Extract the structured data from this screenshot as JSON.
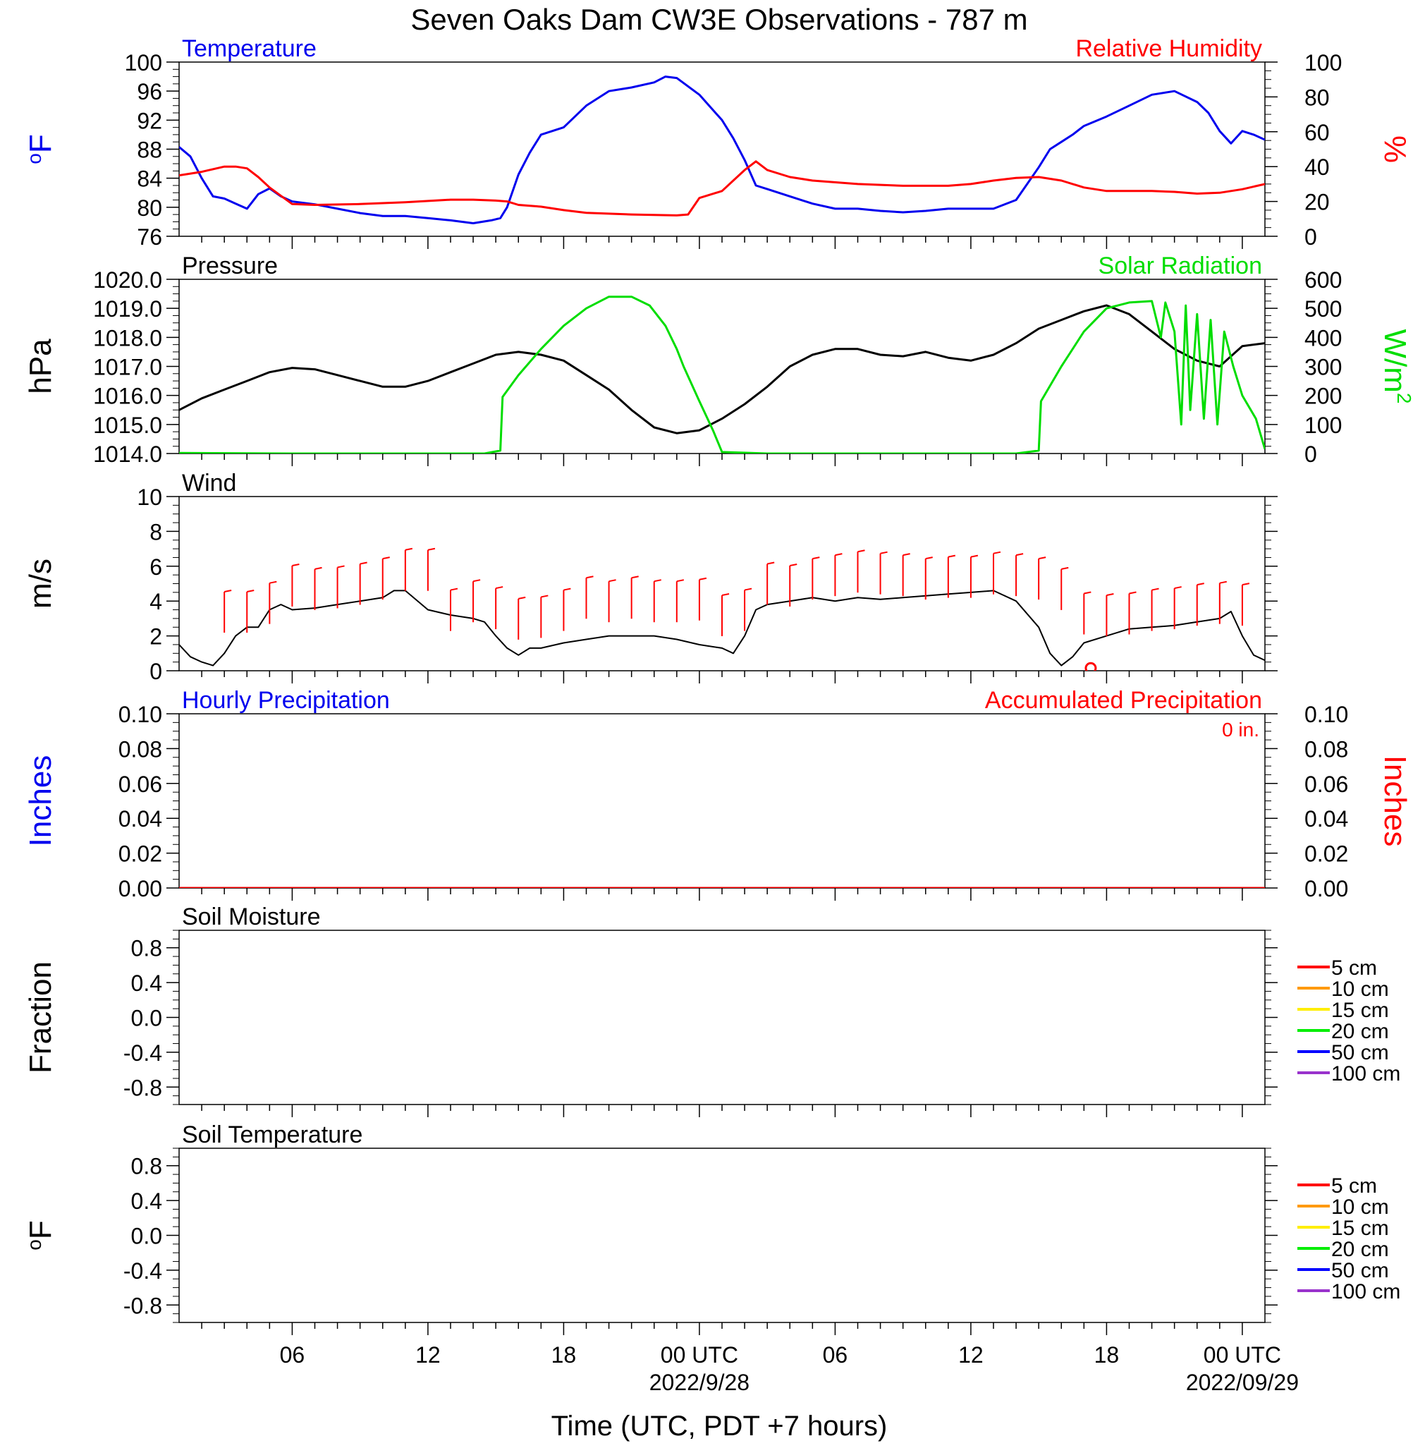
{
  "title": "Seven Oaks Dam CW3E Observations - 787 m",
  "xlabel": "Time (UTC, PDT +7 hours)",
  "x_axis": {
    "range_hours": [
      0,
      48
    ],
    "ticks": [
      {
        "hour": 5,
        "label": "06",
        "date": ""
      },
      {
        "hour": 11,
        "label": "12",
        "date": ""
      },
      {
        "hour": 17,
        "label": "18",
        "date": ""
      },
      {
        "hour": 23,
        "label": "00 UTC",
        "date": "2022/9/28"
      },
      {
        "hour": 29,
        "label": "06",
        "date": ""
      },
      {
        "hour": 35,
        "label": "12",
        "date": ""
      },
      {
        "hour": 41,
        "label": "18",
        "date": ""
      },
      {
        "hour": 47,
        "label": "00 UTC",
        "date": "2022/09/29"
      }
    ]
  },
  "colors": {
    "temperature": "#0000ee",
    "humidity": "#ff0000",
    "pressure": "#000000",
    "solar": "#00dd00",
    "wind": "#000000",
    "wind_barb": "#ff0000",
    "soil": [
      "#ff0000",
      "#ff9900",
      "#ffee00",
      "#00ee00",
      "#0000ff",
      "#9933cc"
    ]
  },
  "chart_data": [
    {
      "type": "line",
      "panel": "temperature-humidity",
      "left_title": "Temperature",
      "right_title": "Relative Humidity",
      "left_ylabel": "oF",
      "right_ylabel": "%",
      "left_ylim": [
        76,
        100
      ],
      "left_ticks": [
        "100",
        "96",
        "92",
        "88",
        "84",
        "80",
        "76"
      ],
      "right_ylim": [
        0,
        100
      ],
      "right_ticks": [
        "100",
        "80",
        "60",
        "40",
        "20",
        "0"
      ],
      "series": [
        {
          "name": "Temperature",
          "axis": "left",
          "x": [
            0,
            0.5,
            1,
            1.5,
            2,
            2.5,
            3,
            3.5,
            4,
            4.5,
            5,
            6,
            7,
            8,
            9,
            10,
            11,
            12,
            13,
            13.8,
            14.2,
            14.5,
            15,
            15.5,
            16,
            17,
            18,
            19,
            20,
            21,
            21.5,
            22,
            23,
            24,
            24.5,
            25,
            25.5,
            26,
            27,
            28,
            29,
            30,
            31,
            32,
            33,
            34,
            35,
            36,
            37,
            38,
            38.5,
            39,
            39.5,
            40,
            41,
            42,
            43,
            44,
            45,
            45.5,
            46,
            46.5,
            47,
            47.5,
            48
          ],
          "y": [
            88.3,
            87,
            84,
            81.5,
            81.2,
            80.5,
            79.8,
            81.8,
            82.6,
            81.5,
            80.8,
            80.4,
            79.8,
            79.2,
            78.8,
            78.8,
            78.5,
            78.2,
            77.8,
            78.2,
            78.5,
            80,
            84.5,
            87.5,
            90,
            91,
            94,
            96,
            96.5,
            97.2,
            98,
            97.8,
            95.5,
            92,
            89.5,
            86.5,
            83,
            82.5,
            81.5,
            80.5,
            79.8,
            79.8,
            79.5,
            79.3,
            79.5,
            79.8,
            79.8,
            79.8,
            81,
            85.5,
            88,
            89,
            90,
            91.2,
            92.5,
            94,
            95.5,
            96,
            94.5,
            93,
            90.5,
            88.8,
            90.5,
            90,
            89.3
          ]
        },
        {
          "name": "Relative Humidity",
          "axis": "right",
          "x": [
            0,
            1,
            2,
            2.5,
            3,
            3.5,
            4,
            5,
            6,
            8,
            10,
            12,
            13,
            14,
            14.5,
            15,
            16,
            17,
            18,
            20,
            22,
            22.5,
            23,
            24,
            25,
            25.5,
            26,
            27,
            28,
            30,
            32,
            34,
            35,
            36,
            37,
            38,
            39,
            40,
            41,
            42,
            43,
            44,
            45,
            46,
            47,
            48
          ],
          "y": [
            35,
            37,
            40,
            40,
            39,
            34,
            28,
            18.5,
            18,
            18.5,
            19.5,
            21,
            21,
            20.5,
            20,
            18,
            17,
            15,
            13.5,
            12.5,
            12,
            12.5,
            22,
            26,
            38,
            43,
            38,
            34,
            32,
            30,
            29,
            29,
            30,
            32,
            33.5,
            34,
            32,
            28,
            26,
            26,
            26,
            25.5,
            24.5,
            25,
            27,
            30
          ]
        }
      ]
    },
    {
      "type": "line",
      "panel": "pressure-solar",
      "left_title": "Pressure",
      "right_title": "Solar Radiation",
      "left_ylabel": "hPa",
      "right_ylabel": "W/m2",
      "left_ylim": [
        1014,
        1020
      ],
      "left_ticks": [
        "1020.0",
        "1019.0",
        "1018.0",
        "1017.0",
        "1016.0",
        "1015.0",
        "1014.0"
      ],
      "right_ylim": [
        0,
        600
      ],
      "right_ticks": [
        "600",
        "500",
        "400",
        "300",
        "200",
        "100",
        "0"
      ],
      "series": [
        {
          "name": "Pressure",
          "axis": "left",
          "x": [
            0,
            1,
            2,
            3,
            4,
            5,
            6,
            7,
            8,
            9,
            10,
            11,
            12,
            13,
            14,
            15,
            16,
            17,
            18,
            19,
            20,
            21,
            22,
            23,
            24,
            25,
            26,
            27,
            28,
            29,
            30,
            31,
            32,
            33,
            34,
            35,
            36,
            37,
            38,
            39,
            40,
            41,
            42,
            43,
            44,
            45,
            46,
            47,
            48
          ],
          "y": [
            1015.5,
            1015.9,
            1016.2,
            1016.5,
            1016.8,
            1016.95,
            1016.9,
            1016.7,
            1016.5,
            1016.3,
            1016.3,
            1016.5,
            1016.8,
            1017.1,
            1017.4,
            1017.5,
            1017.4,
            1017.2,
            1016.7,
            1016.2,
            1015.5,
            1014.9,
            1014.7,
            1014.8,
            1015.2,
            1015.7,
            1016.3,
            1017.0,
            1017.4,
            1017.6,
            1017.6,
            1017.4,
            1017.35,
            1017.5,
            1017.3,
            1017.2,
            1017.4,
            1017.8,
            1018.3,
            1018.6,
            1018.9,
            1019.1,
            1018.8,
            1018.2,
            1017.6,
            1017.2,
            1017.0,
            1017.7,
            1017.8
          ]
        },
        {
          "name": "Solar Radiation",
          "axis": "right",
          "x": [
            0,
            5,
            10,
            13.5,
            14.2,
            14.3,
            15,
            16,
            17,
            18,
            19,
            20,
            20.8,
            21.5,
            22,
            22.3,
            23,
            23.6,
            24,
            26,
            30,
            35,
            37,
            38,
            38.1,
            39,
            40,
            41,
            42,
            43,
            43.4,
            43.6,
            44,
            44.3,
            44.5,
            44.7,
            45,
            45.3,
            45.6,
            45.9,
            46.2,
            46.6,
            47,
            47.6,
            48
          ],
          "y": [
            2,
            0,
            0,
            0,
            10,
            195,
            270,
            360,
            440,
            500,
            540,
            540,
            510,
            440,
            360,
            300,
            180,
            80,
            5,
            0,
            0,
            0,
            0,
            10,
            180,
            300,
            420,
            500,
            520,
            525,
            400,
            520,
            420,
            100,
            510,
            150,
            480,
            120,
            460,
            100,
            420,
            300,
            200,
            120,
            15
          ]
        }
      ]
    },
    {
      "type": "line",
      "panel": "wind",
      "left_title": "Wind",
      "left_ylabel": "m/s",
      "left_ylim": [
        0,
        10
      ],
      "left_ticks": [
        "10",
        "8",
        "6",
        "4",
        "2",
        "0"
      ],
      "series": [
        {
          "name": "Wind",
          "axis": "left",
          "x": [
            0,
            0.5,
            1,
            1.5,
            2,
            2.5,
            3,
            3.5,
            4,
            4.5,
            5,
            6,
            7,
            8,
            9,
            9.5,
            10,
            11,
            12,
            13,
            13.5,
            14,
            14.5,
            15,
            15.5,
            16,
            17,
            18,
            19,
            20,
            21,
            22,
            23,
            24,
            24.5,
            25,
            25.5,
            26,
            27,
            28,
            29,
            30,
            31,
            32,
            33,
            34,
            35,
            36,
            37,
            38,
            38.5,
            39,
            39.5,
            40,
            41,
            42,
            43,
            44,
            45,
            46,
            46.5,
            47,
            47.5,
            48
          ],
          "y": [
            1.5,
            0.8,
            0.5,
            0.3,
            1.0,
            2.0,
            2.5,
            2.5,
            3.5,
            3.8,
            3.5,
            3.6,
            3.8,
            4.0,
            4.2,
            4.6,
            4.6,
            3.5,
            3.2,
            3.0,
            2.8,
            2.0,
            1.3,
            0.9,
            1.3,
            1.3,
            1.6,
            1.8,
            2.0,
            2.0,
            2.0,
            1.8,
            1.5,
            1.3,
            1.0,
            2.0,
            3.5,
            3.8,
            4.0,
            4.2,
            4.0,
            4.2,
            4.1,
            4.2,
            4.3,
            4.4,
            4.5,
            4.6,
            4.0,
            2.5,
            1.0,
            0.3,
            0.8,
            1.6,
            2.0,
            2.4,
            2.5,
            2.6,
            2.8,
            3.0,
            3.4,
            2.0,
            0.9,
            0.6
          ]
        }
      ],
      "barbs": {
        "x": [
          2,
          3,
          4,
          5,
          6,
          7,
          8,
          9,
          10,
          11,
          12,
          13,
          14,
          15,
          16,
          17,
          18,
          19,
          20,
          21,
          22,
          23,
          24,
          25,
          26,
          27,
          28,
          29,
          30,
          31,
          32,
          33,
          34,
          35,
          36,
          37,
          38,
          39,
          40,
          41,
          42,
          43,
          44,
          45,
          46,
          47
        ],
        "y": [
          3.4,
          3.4,
          3.9,
          4.9,
          4.7,
          4.8,
          5.0,
          5.3,
          5.8,
          5.8,
          3.5,
          4.0,
          3.6,
          3.0,
          3.1,
          3.5,
          4.2,
          4.0,
          4.2,
          4.0,
          4.0,
          4.1,
          3.2,
          3.5,
          5.0,
          4.9,
          5.3,
          5.5,
          5.7,
          5.6,
          5.5,
          5.3,
          5.4,
          5.4,
          5.6,
          5.5,
          5.3,
          4.7,
          3.3,
          3.2,
          3.3,
          3.5,
          3.6,
          3.8,
          3.9,
          3.8
        ]
      },
      "calm_marker": {
        "x": 40.3,
        "y": 0.15
      }
    },
    {
      "type": "line",
      "panel": "precipitation",
      "left_title": "Hourly Precipitation",
      "right_title": "Accumulated Precipitation",
      "annotation": "0 in.",
      "left_ylabel": "Inches",
      "right_ylabel": "Inches",
      "left_ylim": [
        0,
        0.1
      ],
      "left_ticks": [
        "0.10",
        "0.08",
        "0.06",
        "0.04",
        "0.02",
        "0.00"
      ],
      "right_ylim": [
        0,
        0.1
      ],
      "right_ticks": [
        "0.10",
        "0.08",
        "0.06",
        "0.04",
        "0.02",
        "0.00"
      ],
      "series": [
        {
          "name": "Accumulated Precipitation",
          "axis": "right",
          "x": [
            0,
            48
          ],
          "y": [
            0,
            0
          ]
        }
      ]
    },
    {
      "type": "line",
      "panel": "soil-moisture",
      "left_title": "Soil Moisture",
      "left_ylabel": "Fraction",
      "left_ylim": [
        -1,
        1
      ],
      "left_ticks": [
        "0.8",
        "0.4",
        "0.0",
        "-0.4",
        "-0.8"
      ],
      "legend": [
        "5 cm",
        "10 cm",
        "15 cm",
        "20 cm",
        "50 cm",
        "100 cm"
      ],
      "series": []
    },
    {
      "type": "line",
      "panel": "soil-temperature",
      "left_title": "Soil Temperature",
      "left_ylabel": "oF",
      "left_ylim": [
        -1,
        1
      ],
      "left_ticks": [
        "0.8",
        "0.4",
        "0.0",
        "-0.4",
        "-0.8"
      ],
      "legend": [
        "5 cm",
        "10 cm",
        "15 cm",
        "20 cm",
        "50 cm",
        "100 cm"
      ],
      "series": []
    }
  ]
}
